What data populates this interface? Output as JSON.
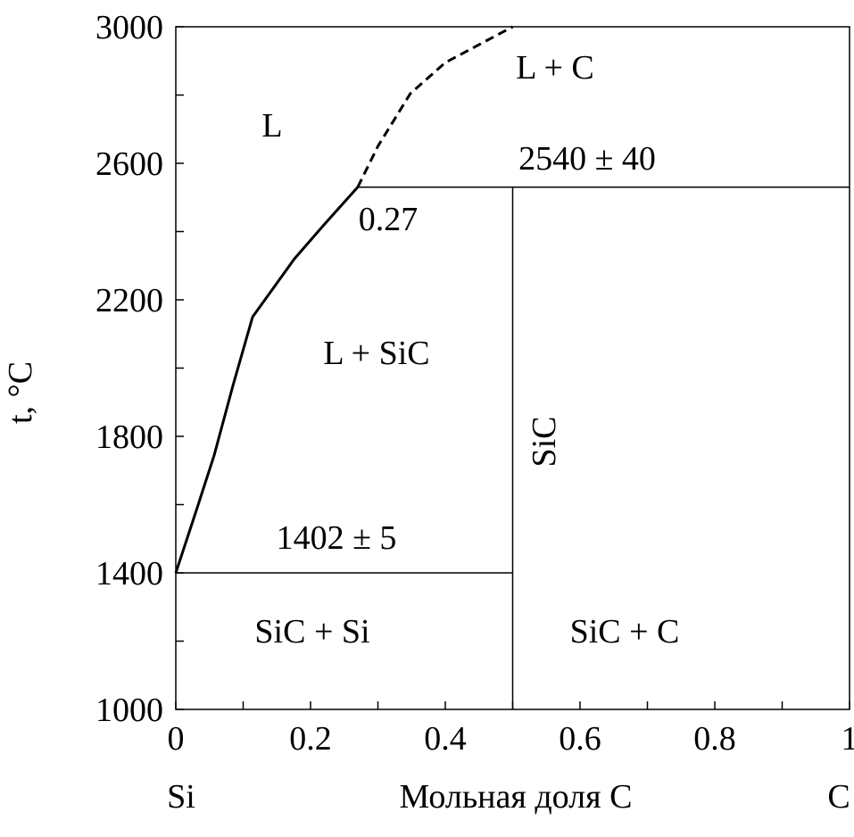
{
  "chart_data": {
    "type": "line",
    "xlabel": "Мольная доля C",
    "ylabel": "t, °C",
    "x_left_label": "Si",
    "x_right_label": "C",
    "xlim": [
      0,
      1
    ],
    "ylim": [
      1000,
      3000
    ],
    "xticks": [
      0,
      0.2,
      0.4,
      0.6,
      0.8,
      1
    ],
    "xticks_minor": [
      0.1,
      0.3,
      0.5,
      0.7,
      0.9
    ],
    "yticks": [
      1000,
      1400,
      1800,
      2200,
      2600,
      3000
    ],
    "yticks_minor": [
      1200,
      1600,
      2000,
      2400,
      2800
    ],
    "color": "#000000",
    "series": [
      {
        "x": [
          0,
          0.03,
          0.057,
          0.085,
          0.114,
          0.176,
          0.22,
          0.27
        ],
        "values": [
          1400,
          1580,
          1745,
          1950,
          2150,
          2320,
          2420,
          2530
        ],
        "dashed": false
      },
      {
        "x": [
          0.27,
          0.3,
          0.348,
          0.4,
          0.5
        ],
        "values": [
          2530,
          2650,
          2804,
          2895,
          3000
        ],
        "dashed": true
      },
      {
        "x": [
          0,
          0.5
        ],
        "values": [
          1400,
          1400
        ],
        "dashed": false
      },
      {
        "x": [
          0.27,
          1
        ],
        "values": [
          2530,
          2530
        ],
        "dashed": false
      },
      {
        "x": [
          0.5,
          0.5
        ],
        "values": [
          1000,
          2530
        ],
        "dashed": false
      }
    ],
    "annotations": [
      "L",
      "L + C",
      "2540 ± 40",
      "0.27",
      "L + SiC",
      "SiC",
      "1402 ± 5",
      "SiC + Si",
      "SiC + C"
    ]
  }
}
